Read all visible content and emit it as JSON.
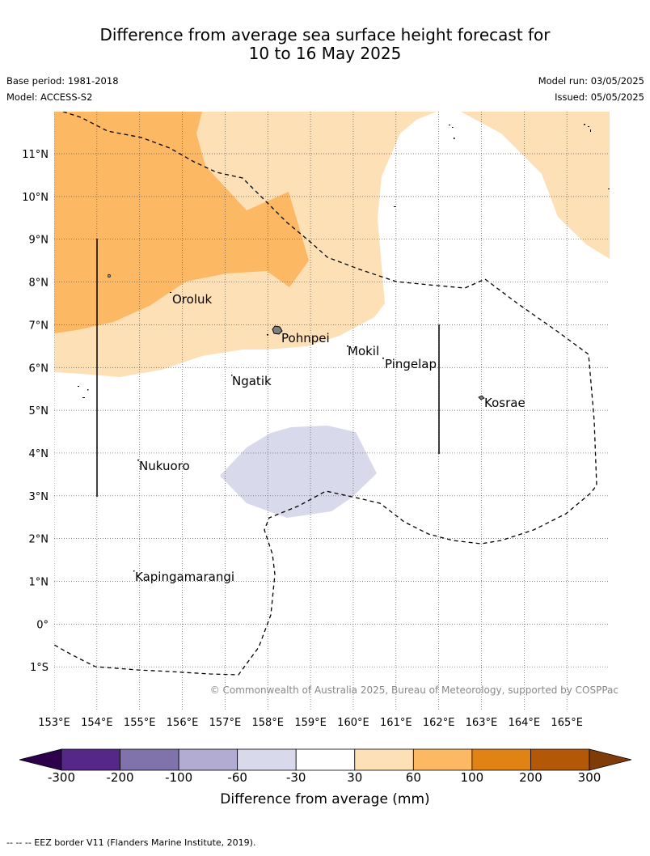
{
  "title": {
    "line1": "Difference from average sea surface height forecast for",
    "line2": "10 to 16 May 2025"
  },
  "meta": {
    "base_period": "Base period: 1981-2018",
    "model": "Model: ACCESS-S2",
    "model_run": "Model run: 03/05/2025",
    "issued": "Issued: 05/05/2025"
  },
  "map": {
    "lat_labels": [
      "11°N",
      "10°N",
      "9°N",
      "8°N",
      "7°N",
      "6°N",
      "5°N",
      "4°N",
      "3°N",
      "2°N",
      "1°N",
      "0°",
      "1°S"
    ],
    "lon_labels": [
      "153°E",
      "154°E",
      "155°E",
      "156°E",
      "157°E",
      "158°E",
      "159°E",
      "160°E",
      "161°E",
      "162°E",
      "163°E",
      "164°E",
      "165°E"
    ],
    "places": [
      {
        "name": "Oroluk"
      },
      {
        "name": "Pohnpei"
      },
      {
        "name": "Mokil"
      },
      {
        "name": "Pingelap"
      },
      {
        "name": "Ngatik"
      },
      {
        "name": "Kosrae"
      },
      {
        "name": "Nukuoro"
      },
      {
        "name": "Kapingamarangi"
      }
    ],
    "copyright": "© Commonwealth of Australia 2025, Bureau of Meteorology, supported by COSPPac",
    "colors": {
      "orange_100_200": "#e08214",
      "orange_60_100": "#fdb863",
      "orange_30_60": "#fee0b6",
      "purple_neg60_neg30": "#d8daeb"
    }
  },
  "colorbar": {
    "labels": [
      "-300",
      "-200",
      "-100",
      "-60",
      "-30",
      "30",
      "60",
      "100",
      "200",
      "300"
    ],
    "colors": [
      "#2d004b",
      "#542788",
      "#8073ac",
      "#b2abd2",
      "#d8daeb",
      "#ffffff",
      "#fee0b6",
      "#fdb863",
      "#e08214",
      "#b35806",
      "#7f3b08"
    ],
    "title": "Difference from average (mm)"
  },
  "footnote": "--  --  -- EEZ border V11 (Flanders Marine Institute, 2019)."
}
